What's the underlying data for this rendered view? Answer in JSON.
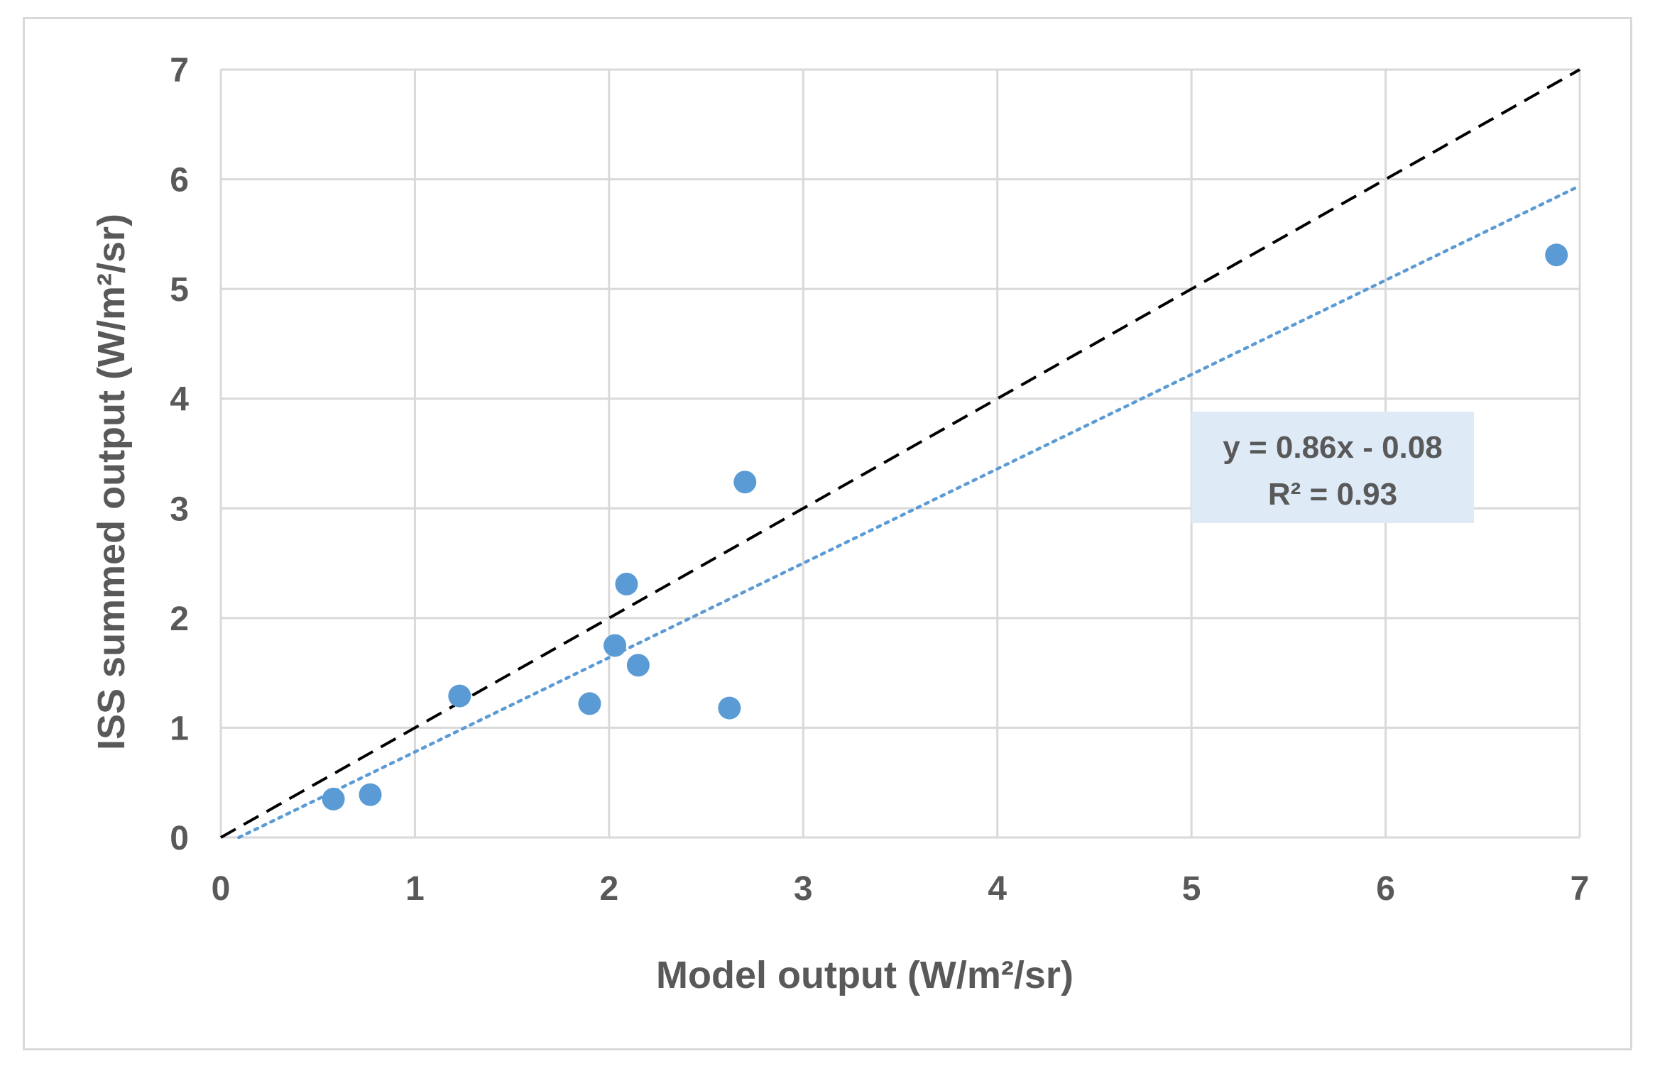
{
  "chart_data": {
    "type": "scatter",
    "xlabel": "Model output (W/m²/sr)",
    "ylabel": "ISS summed output (W/m²/sr)",
    "xlim": [
      0,
      7
    ],
    "ylim": [
      0,
      7
    ],
    "xticks": [
      "0",
      "1",
      "2",
      "3",
      "4",
      "5",
      "6",
      "7"
    ],
    "yticks": [
      "0",
      "1",
      "2",
      "3",
      "4",
      "5",
      "6",
      "7"
    ],
    "grid": true,
    "points": [
      {
        "x": 0.58,
        "y": 0.35
      },
      {
        "x": 0.77,
        "y": 0.39
      },
      {
        "x": 1.23,
        "y": 1.29
      },
      {
        "x": 1.9,
        "y": 1.22
      },
      {
        "x": 2.03,
        "y": 1.75
      },
      {
        "x": 2.09,
        "y": 2.31
      },
      {
        "x": 2.15,
        "y": 1.57
      },
      {
        "x": 2.62,
        "y": 1.18
      },
      {
        "x": 2.7,
        "y": 3.24
      },
      {
        "x": 6.88,
        "y": 5.31
      }
    ],
    "identity_line": {
      "slope": 1,
      "intercept": 0,
      "color": "#000000",
      "style": "dashed"
    },
    "trendline": {
      "slope": 0.86,
      "intercept": -0.08,
      "color": "#5b9bd5",
      "style": "dotted",
      "equation": "y = 0.86x - 0.08",
      "r_squared": "R² = 0.93"
    },
    "marker_color": "#5b9bd5",
    "equation_box_color": "#deebf7"
  }
}
